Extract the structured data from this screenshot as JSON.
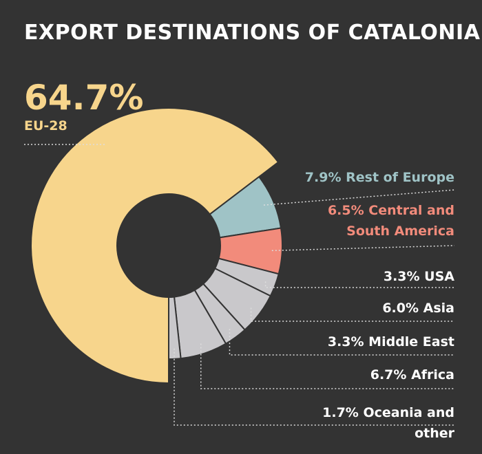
{
  "chart_data": {
    "type": "donut",
    "title": "EXPORT DESTINATIONS OF CATALONIA",
    "categories": [
      "EU-28",
      "Rest of Europe",
      "Central and South America",
      "USA",
      "Asia",
      "Middle East",
      "Africa",
      "Oceania and other"
    ],
    "values": [
      64.7,
      7.9,
      6.5,
      3.3,
      6.0,
      3.3,
      6.7,
      1.7
    ],
    "value_labels": [
      "64.7%",
      "7.9%",
      "6.5%",
      "3.3%",
      "6.0%",
      "3.3%",
      "6.7%",
      "1.7%"
    ],
    "colors": [
      "#f7d58c",
      "#9fc3c6",
      "#f28b7b",
      "#c9c8cb",
      "#c9c8cb",
      "#c9c8cb",
      "#c9c8cb",
      "#c9c8cb"
    ]
  }
}
